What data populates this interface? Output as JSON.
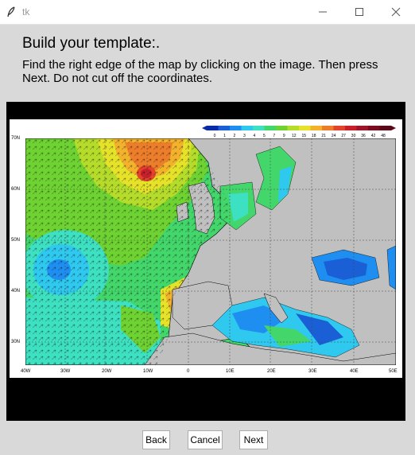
{
  "window": {
    "title": "tk"
  },
  "heading": "Build your template:.",
  "instructions": "Find the right edge of the map by clicking on the image. Then press Next. Do not cut off the coordinates.",
  "map": {
    "colorbar_ticks": [
      "0",
      "1",
      "2",
      "3",
      "4",
      "5",
      "7",
      "9",
      "12",
      "15",
      "18",
      "21",
      "24",
      "27",
      "30",
      "36",
      "42",
      "48"
    ],
    "colorbar_colors": [
      "#0a2aa8",
      "#1a5fd6",
      "#1e8ff0",
      "#2fc8ee",
      "#3de0c0",
      "#43d66b",
      "#6ed332",
      "#b5dc2a",
      "#e6e22a",
      "#f2b22c",
      "#ec7d2a",
      "#e2432a",
      "#c8202a",
      "#9e1428",
      "#7a0c22",
      "#5a0818"
    ],
    "lat_labels": [
      "70N",
      "60N",
      "50N",
      "40N",
      "30N"
    ],
    "lon_labels": [
      "40W",
      "30W",
      "20W",
      "10W",
      "0",
      "10E",
      "20E",
      "30E",
      "40E",
      "50E"
    ]
  },
  "buttons": {
    "back": "Back",
    "cancel": "Cancel",
    "next": "Next"
  }
}
